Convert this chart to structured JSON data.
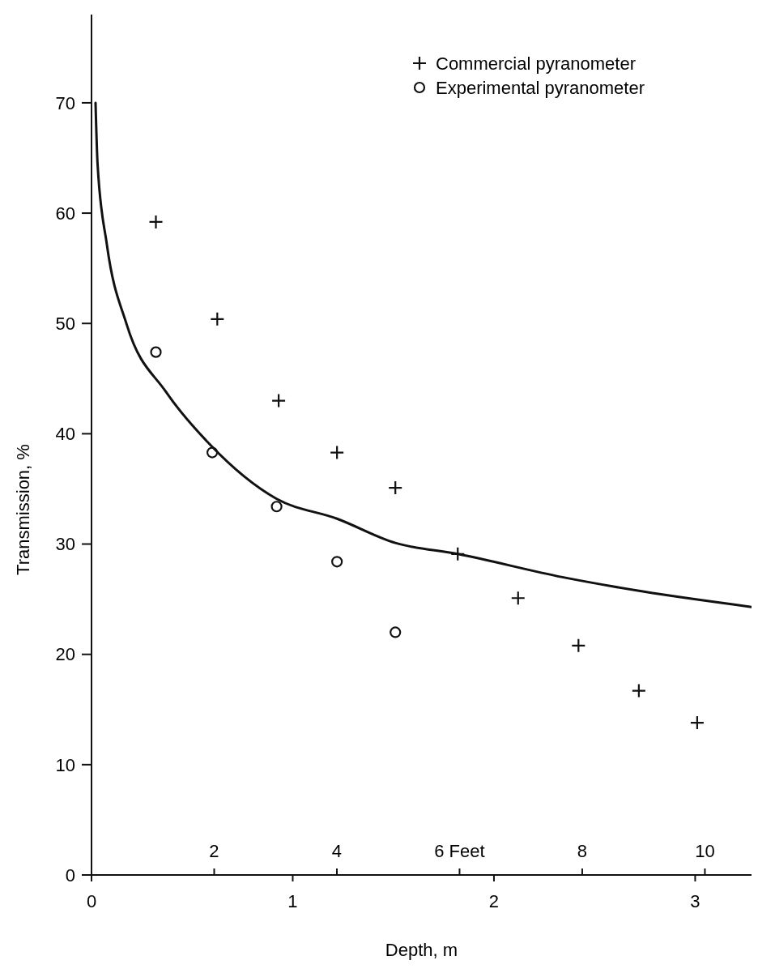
{
  "chart_data": {
    "type": "scatter",
    "xlabel": "Depth, m",
    "ylabel": "Transmission, %",
    "xlim": [
      0,
      3.28
    ],
    "xticks": [
      0,
      1,
      2,
      3
    ],
    "x2lim": [
      0,
      10.76
    ],
    "x2ticks": [
      2,
      4,
      {
        "value": 6,
        "label": "6 Feet"
      },
      8,
      10
    ],
    "ylim": [
      0,
      78
    ],
    "yticks": [
      0,
      10,
      20,
      30,
      40,
      50,
      60,
      70
    ],
    "grid": false,
    "legend": "top right",
    "series": [
      {
        "name": "Commercial pyranometer",
        "marker": "cross",
        "color": "#111111",
        "x": [
          0.32,
          0.625,
          0.93,
          1.22,
          1.51,
          1.82,
          2.12,
          2.42,
          2.72,
          3.01
        ],
        "values": [
          59.2,
          50.4,
          43.0,
          38.3,
          35.1,
          29.1,
          25.1,
          20.8,
          16.7,
          13.8
        ]
      },
      {
        "name": "Experimental pyranometer",
        "marker": "circle",
        "color": "#111111",
        "x": [
          0.32,
          0.6,
          0.92,
          1.22,
          1.51
        ],
        "values": [
          47.4,
          38.3,
          33.4,
          28.4,
          22.0
        ]
      },
      {
        "type": "line",
        "marker": "none",
        "line_style": "solid",
        "color": "#111111",
        "x": [
          0.02,
          0.03,
          0.076,
          0.175,
          0.37,
          0.59,
          0.92,
          1.22,
          1.51,
          1.82,
          2.34,
          2.74,
          3.28
        ],
        "values": [
          70,
          64.5,
          57.2,
          49.9,
          43.8,
          39.0,
          34.1,
          32.3,
          30.1,
          29.1,
          27.0,
          25.7,
          24.3
        ]
      }
    ]
  }
}
